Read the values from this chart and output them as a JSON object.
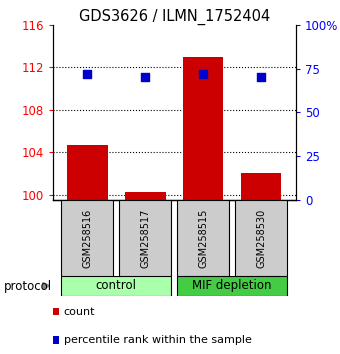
{
  "title": "GDS3626 / ILMN_1752404",
  "samples": [
    "GSM258516",
    "GSM258517",
    "GSM258515",
    "GSM258530"
  ],
  "bar_values": [
    104.7,
    100.3,
    113.0,
    102.0
  ],
  "percentile_pct": [
    72,
    70,
    72,
    70
  ],
  "ylim_left": [
    99.5,
    116
  ],
  "ylim_right": [
    0,
    100
  ],
  "yticks_left": [
    100,
    104,
    108,
    112,
    116
  ],
  "yticks_right": [
    0,
    25,
    50,
    75,
    100
  ],
  "ytick_labels_left": [
    "100",
    "104",
    "108",
    "112",
    "116"
  ],
  "ytick_labels_right": [
    "0",
    "25",
    "50",
    "75",
    "100%"
  ],
  "bar_color": "#cc0000",
  "dot_color": "#0000cc",
  "groups": [
    {
      "label": "control",
      "indices": [
        0,
        1
      ],
      "color": "#aaffaa"
    },
    {
      "label": "MIF depletion",
      "indices": [
        2,
        3
      ],
      "color": "#44cc44"
    }
  ],
  "protocol_label": "protocol",
  "background_color": "#ffffff",
  "bar_width": 0.7,
  "dot_size": 40,
  "legend_count_label": "count",
  "legend_pct_label": "percentile rank within the sample",
  "box_color": "#cccccc"
}
